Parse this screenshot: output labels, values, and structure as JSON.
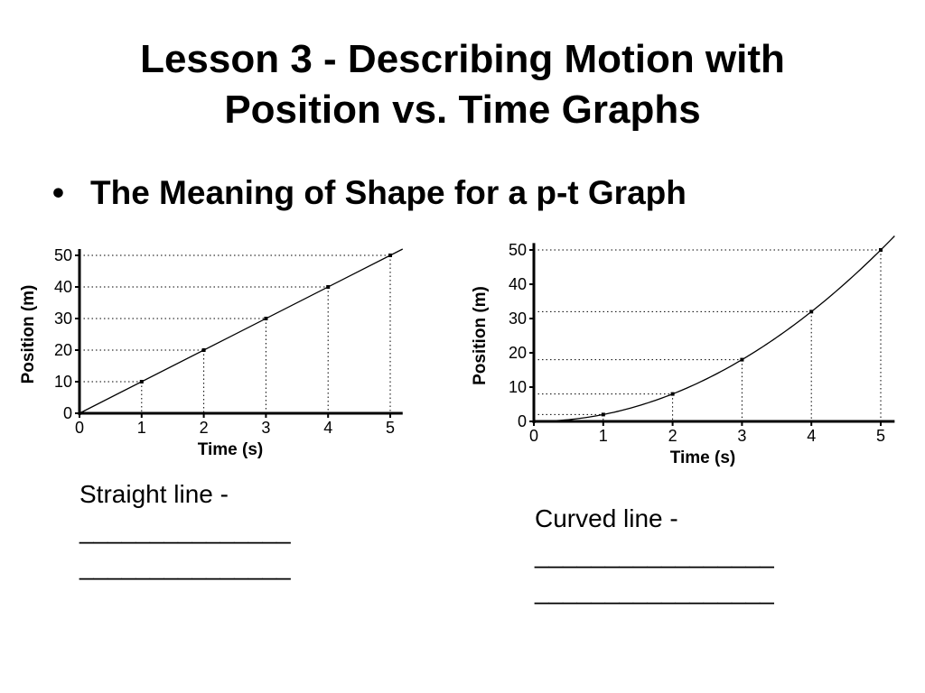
{
  "slide": {
    "title_line1": "Lesson 3 - Describing Motion with",
    "title_line2": "Position vs. Time Graphs",
    "bullet_symbol": "•",
    "bullet_text": "The Meaning of Shape for a p-t Graph"
  },
  "captions": {
    "left": {
      "label": "Straight line -",
      "blank1": "_______________",
      "blank2": "_______________"
    },
    "right": {
      "label": "Curved line -",
      "blank1": "_________________",
      "blank2": "_________________"
    }
  },
  "chart_data": [
    {
      "type": "line",
      "shape": "straight",
      "title": "",
      "xlabel": "Time (s)",
      "ylabel": "Position (m)",
      "x": [
        0,
        1,
        2,
        3,
        4,
        5
      ],
      "y": [
        0,
        10,
        20,
        30,
        40,
        50
      ],
      "xticks": [
        "0",
        "1",
        "2",
        "3",
        "4",
        "5"
      ],
      "yticks": [
        "0",
        "10",
        "20",
        "30",
        "40",
        "50"
      ],
      "xlim": [
        0,
        5.2
      ],
      "ylim": [
        0,
        52
      ],
      "grid": "dotted guide lines to each point",
      "color": "#000000"
    },
    {
      "type": "line",
      "shape": "curved",
      "title": "",
      "xlabel": "Time (s)",
      "ylabel": "Position (m)",
      "x": [
        0,
        1,
        2,
        3,
        4,
        5
      ],
      "y": [
        0,
        2,
        8,
        18,
        32,
        50
      ],
      "xticks": [
        "0",
        "1",
        "2",
        "3",
        "4",
        "5"
      ],
      "yticks": [
        "0",
        "10",
        "20",
        "30",
        "40",
        "50"
      ],
      "xlim": [
        0,
        5.2
      ],
      "ylim": [
        0,
        52
      ],
      "grid": "dotted guide lines to each point",
      "color": "#000000"
    }
  ]
}
